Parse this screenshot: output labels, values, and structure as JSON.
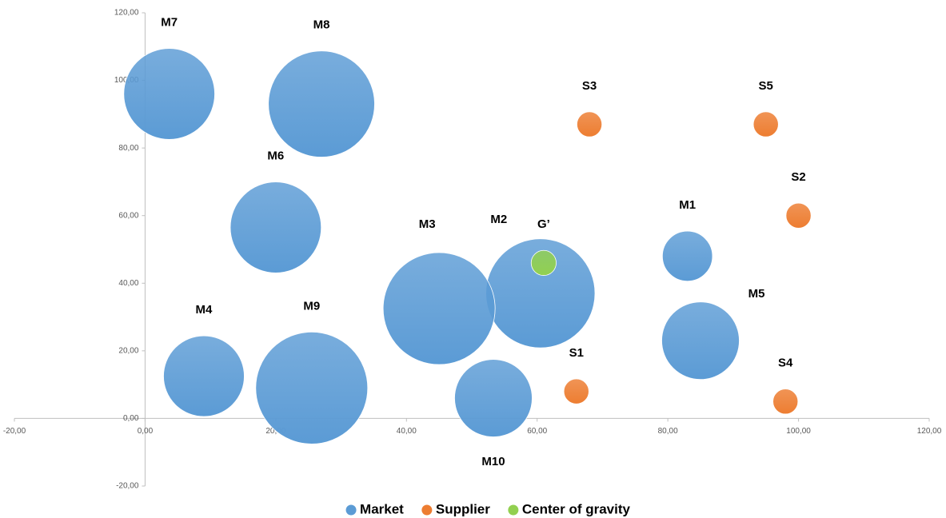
{
  "chart_data": {
    "type": "bubble",
    "xlim": [
      -20,
      120
    ],
    "xticks": [
      {
        "value": -20,
        "label": "-20,00"
      },
      {
        "value": 0,
        "label": "0,00"
      },
      {
        "value": 20,
        "label": "20,00"
      },
      {
        "value": 40,
        "label": "40,00"
      },
      {
        "value": 60,
        "label": "60,00"
      },
      {
        "value": 80,
        "label": "80,00"
      },
      {
        "value": 100,
        "label": "100,00"
      },
      {
        "value": 120,
        "label": "120,00"
      }
    ],
    "ylim": [
      -20,
      120
    ],
    "yticks": [
      {
        "value": -20,
        "label": "-20,00"
      },
      {
        "value": 0,
        "label": "0,00"
      },
      {
        "value": 20,
        "label": "20,00"
      },
      {
        "value": 40,
        "label": "40,00"
      },
      {
        "value": 60,
        "label": "60,00"
      },
      {
        "value": 80,
        "label": "80,00"
      },
      {
        "value": 100,
        "label": "100,00"
      },
      {
        "value": 120,
        "label": "120,00"
      }
    ],
    "legend": "bottom",
    "series": [
      {
        "name": "Market",
        "color": "#5b9bd5",
        "labels": [
          "M1",
          "M2",
          "M3",
          "M4",
          "M5",
          "M6",
          "M7",
          "M8",
          "M9",
          "M10"
        ],
        "x": [
          83,
          60.5,
          45,
          9,
          85,
          20,
          3.7,
          27,
          25.5,
          53.3
        ],
        "values": [
          48,
          37,
          32.5,
          12.5,
          23,
          56.5,
          96,
          93,
          9,
          6
        ],
        "sizes": [
          20,
          95,
          100,
          52,
          48,
          66,
          66,
          90,
          100,
          48
        ]
      },
      {
        "name": "Supplier",
        "color": "#ed7d31",
        "labels": [
          "S1",
          "S2",
          "S3",
          "S4",
          "S5"
        ],
        "x": [
          66,
          100,
          68,
          98,
          95
        ],
        "values": [
          8,
          60,
          87,
          5,
          87
        ],
        "sizes": [
          5,
          5,
          5,
          5,
          5
        ]
      },
      {
        "name": "Center of gravity",
        "color": "#92d050",
        "labels": [
          "G’"
        ],
        "x": [
          61
        ],
        "values": [
          46
        ],
        "sizes": [
          5
        ]
      }
    ]
  }
}
